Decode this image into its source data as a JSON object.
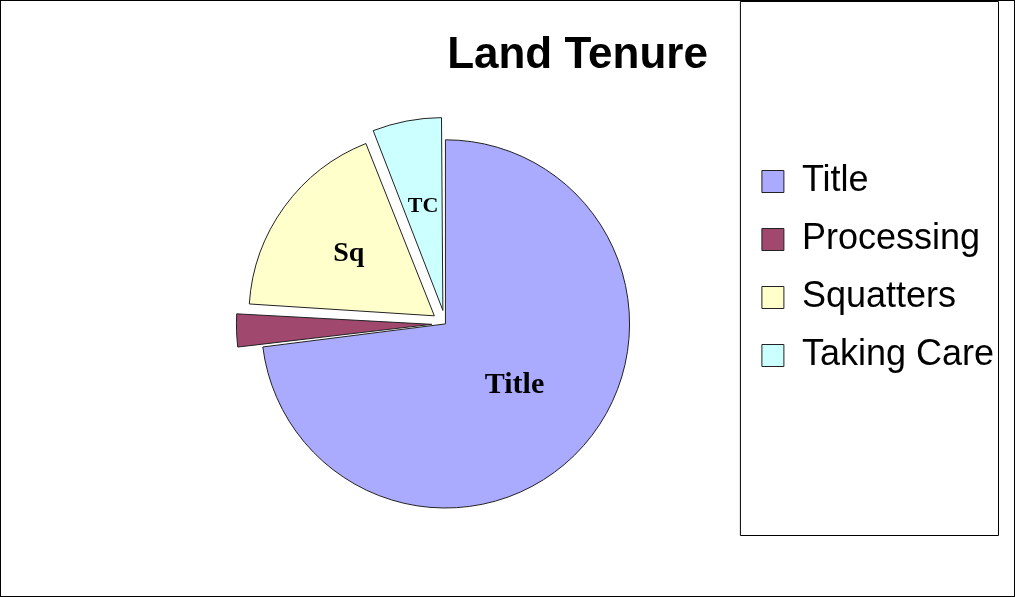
{
  "chart_data": {
    "type": "pie",
    "title": "Land Tenure",
    "categories": [
      "Title",
      "Processing",
      "Squatters",
      "Taking Care"
    ],
    "values": [
      73,
      3,
      18,
      6
    ],
    "colors": [
      "#aaaaff",
      "#a0486e",
      "#ffffcc",
      "#ccffff"
    ],
    "value_labels": [
      "Title",
      null,
      "Sq",
      "TC"
    ],
    "legend": "right"
  }
}
